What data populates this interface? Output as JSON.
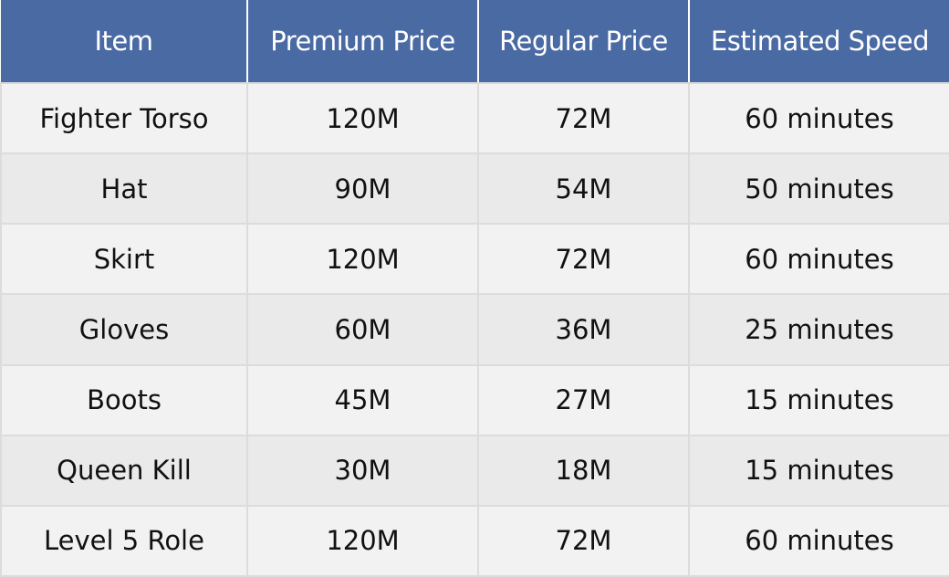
{
  "table": {
    "headers": [
      "Item",
      "Premium Price",
      "Regular Price",
      "Estimated Speed"
    ],
    "rows": [
      [
        "Fighter Torso",
        "120M",
        "72M",
        "60 minutes"
      ],
      [
        "Hat",
        "90M",
        "54M",
        "50 minutes"
      ],
      [
        "Skirt",
        "120M",
        "72M",
        "60 minutes"
      ],
      [
        "Gloves",
        "60M",
        "36M",
        "25 minutes"
      ],
      [
        "Boots",
        "45M",
        "27M",
        "15 minutes"
      ],
      [
        "Queen Kill",
        "30M",
        "18M",
        "15 minutes"
      ],
      [
        "Level 5 Role",
        "120M",
        "72M",
        "60 minutes"
      ]
    ]
  },
  "colors": {
    "header_background": "#4a6aa4",
    "header_text": "#ffffff",
    "row_background_odd": "#f2f2f2",
    "row_background_even": "#eaeaea",
    "cell_border": "#dcdcdc"
  }
}
